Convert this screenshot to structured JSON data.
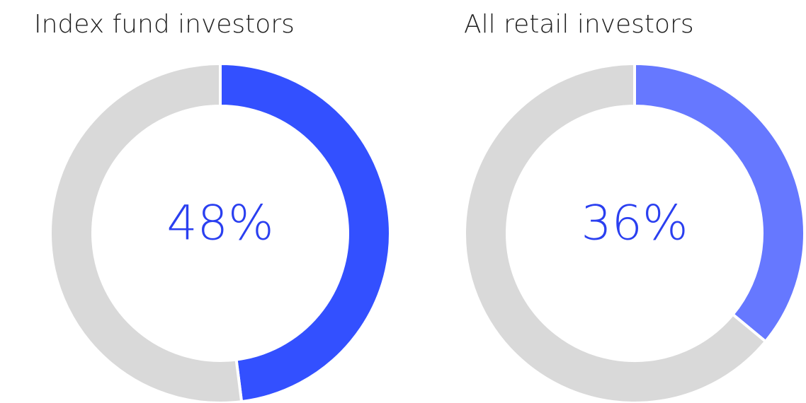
{
  "chart_data": [
    {
      "type": "donut",
      "title": "Index fund investors",
      "values": [
        48,
        52
      ],
      "value_labels": [
        "48%",
        null
      ],
      "colors": [
        "#3350ff",
        "#d9d9d9"
      ],
      "label_color": "#2a3ff0"
    },
    {
      "type": "donut",
      "title": "All retail investors",
      "values": [
        36,
        64
      ],
      "value_labels": [
        "36%",
        null
      ],
      "colors": [
        "#6678ff",
        "#d9d9d9"
      ],
      "label_color": "#2a3ff0"
    }
  ]
}
